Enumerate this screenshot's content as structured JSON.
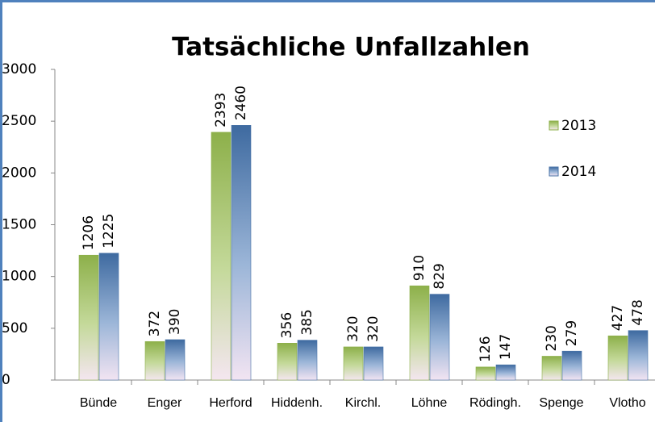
{
  "chart_data": {
    "type": "bar",
    "title": "Tatsächliche Unfallzahlen",
    "categories": [
      "Bünde",
      "Enger",
      "Herford",
      "Hiddenh.",
      "Kirchl.",
      "Löhne",
      "Rödingh.",
      "Spenge",
      "Vlotho"
    ],
    "series": [
      {
        "name": "2013",
        "color": "#8db04a",
        "values": [
          1206,
          372,
          2393,
          356,
          320,
          910,
          126,
          230,
          427
        ]
      },
      {
        "name": "2014",
        "color": "#4a74a8",
        "values": [
          1225,
          390,
          2460,
          385,
          320,
          829,
          147,
          279,
          478
        ]
      }
    ],
    "ylim": [
      0,
      3000
    ],
    "yticks": [
      0,
      500,
      1000,
      1500,
      2000,
      2500,
      3000
    ],
    "legend": "right"
  }
}
